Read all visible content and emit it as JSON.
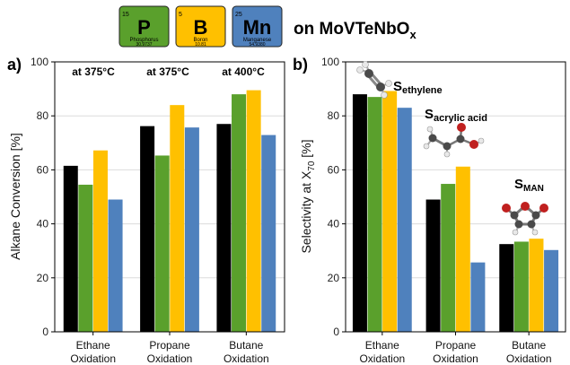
{
  "header": {
    "elements": [
      {
        "number": "15",
        "symbol": "P",
        "name": "Phosphorus",
        "mass": "30.9737",
        "color": "#5aa02c"
      },
      {
        "number": "5",
        "symbol": "B",
        "name": "Boron",
        "mass": "10.81",
        "color": "#ffc000"
      },
      {
        "number": "25",
        "symbol": "Mn",
        "name": "Manganese",
        "mass": "54.9380",
        "color": "#4f81bd"
      }
    ],
    "on_text": "on MoVTeNbO",
    "on_sub": "x"
  },
  "series_colors": [
    "#000000",
    "#5aa02c",
    "#ffc000",
    "#4f81bd"
  ],
  "chart_data": [
    {
      "type": "bar",
      "panel_label": "a)",
      "categories": [
        [
          "Ethane",
          "Oxidation"
        ],
        [
          "Propane",
          "Oxidation"
        ],
        [
          "Butane",
          "Oxidation"
        ]
      ],
      "series": [
        {
          "values": [
            61.5,
            76.2,
            77.0
          ]
        },
        {
          "values": [
            54.5,
            65.3,
            88.0
          ]
        },
        {
          "values": [
            67.2,
            84.0,
            89.5
          ]
        },
        {
          "values": [
            49.0,
            75.7,
            72.9
          ]
        }
      ],
      "ylabel": "Alkane Conversion [%]",
      "ylim": [
        0,
        100
      ],
      "yticks": [
        0,
        20,
        40,
        60,
        80,
        100
      ],
      "annotations": [
        "at 375°C",
        "at 375°C",
        "at 400°C"
      ]
    },
    {
      "type": "bar",
      "panel_label": "b)",
      "categories": [
        [
          "Ethane",
          "Oxidation"
        ],
        [
          "Propane",
          "Oxidation"
        ],
        [
          "Butane",
          "Oxidation"
        ]
      ],
      "series": [
        {
          "values": [
            88.0,
            49.0,
            32.5
          ]
        },
        {
          "values": [
            87.0,
            54.8,
            33.4
          ]
        },
        {
          "values": [
            89.2,
            61.2,
            34.5
          ]
        },
        {
          "values": [
            83.0,
            25.7,
            30.3
          ]
        }
      ],
      "ylabel_main": "Selectivity at X",
      "ylabel_sub": "70",
      "ylabel_tail": " [%]",
      "ylim": [
        0,
        100
      ],
      "yticks": [
        0,
        20,
        40,
        60,
        80,
        100
      ],
      "annotations": [
        {
          "main": "S",
          "sub": "ethylene"
        },
        {
          "main": "S",
          "sub": "acrylic acid"
        },
        {
          "main": "S",
          "sub": "MAN"
        }
      ]
    }
  ]
}
